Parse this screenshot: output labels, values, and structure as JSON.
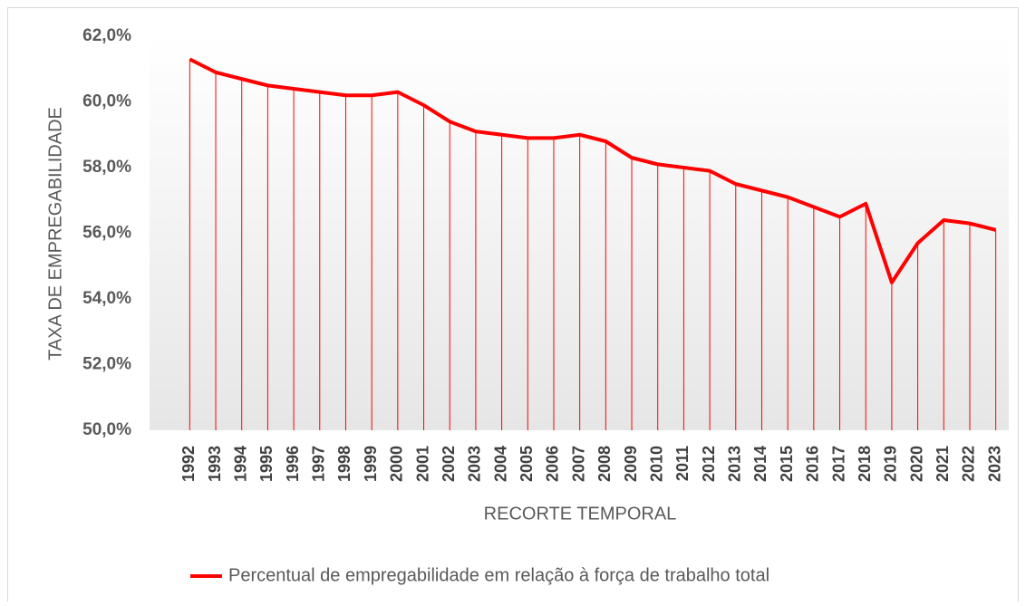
{
  "chart_data": {
    "type": "line",
    "y_label": "TAXA DE EMPREGABILIDADE",
    "x_label": "RECORTE TEMPORAL",
    "categories": [
      "1992",
      "1993",
      "1994",
      "1995",
      "1996",
      "1997",
      "1998",
      "1999",
      "2000",
      "2001",
      "2002",
      "2003",
      "2004",
      "2005",
      "2006",
      "2007",
      "2008",
      "2009",
      "2010",
      "2011",
      "2012",
      "2013",
      "2014",
      "2015",
      "2016",
      "2017",
      "2018",
      "2019",
      "2020",
      "2021",
      "2022",
      "2023"
    ],
    "series": [
      {
        "name": "Percentual de empregabilidade em relação à força de trabalho total",
        "color": "#ff0000",
        "values": [
          61.3,
          60.9,
          60.7,
          60.5,
          60.4,
          60.3,
          60.2,
          60.2,
          60.3,
          59.9,
          59.4,
          59.1,
          59.0,
          58.9,
          58.9,
          59.0,
          58.8,
          58.3,
          58.1,
          58.0,
          57.9,
          57.5,
          57.3,
          57.1,
          56.8,
          56.5,
          56.9,
          54.5,
          55.7,
          56.4,
          56.3,
          56.1
        ]
      }
    ],
    "ylim": [
      50,
      62
    ],
    "yticks": [
      {
        "value": 50,
        "label": "50,0%"
      },
      {
        "value": 52,
        "label": "52,0%"
      },
      {
        "value": 54,
        "label": "54,0%"
      },
      {
        "value": 56,
        "label": "56,0%"
      },
      {
        "value": 58,
        "label": "58,0%"
      },
      {
        "value": 60,
        "label": "60,0%"
      },
      {
        "value": 62,
        "label": "62,0%"
      }
    ],
    "drop_lines": true,
    "legend": "bottom"
  }
}
